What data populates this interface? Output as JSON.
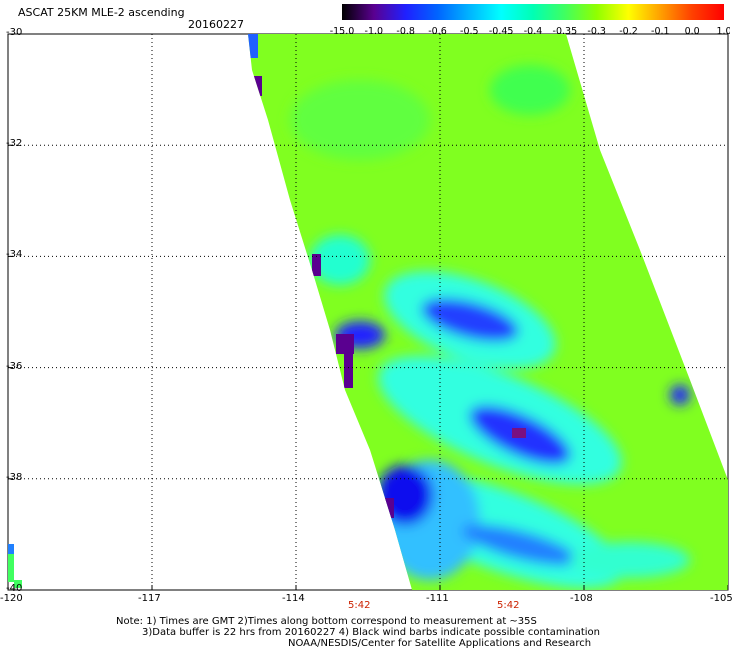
{
  "header": {
    "title": "ASCAT 25KM MLE-2 ascending",
    "date": "20160227"
  },
  "colorbar": {
    "labels": [
      "-15.0",
      "-1.0",
      "-0.8",
      "-0.6",
      "-0.5",
      "-0.45",
      "-0.4",
      "-0.35",
      "-0.3",
      "-0.2",
      "-0.1",
      "0.0",
      "1.0"
    ],
    "colors": [
      "#000000",
      "#5a0090",
      "#2020ff",
      "#0064ff",
      "#00b4ff",
      "#00ffff",
      "#00ffb4",
      "#40ff60",
      "#90ff00",
      "#ffff00",
      "#ffa000",
      "#ff4000",
      "#ff0000"
    ]
  },
  "axes": {
    "lat_labels": [
      "-30",
      "-32",
      "-34",
      "-36",
      "-38",
      "-40"
    ],
    "lon_labels": [
      "-120",
      "-117",
      "-114",
      "-111",
      "-108",
      "-105"
    ],
    "lat_values": [
      -30,
      -32,
      -34,
      -36,
      -38,
      -40
    ],
    "lon_values": [
      -120,
      -117,
      -114,
      -111,
      -108,
      -105
    ]
  },
  "times": [
    "5:42",
    "5:42"
  ],
  "notes": {
    "line1": "Note: 1) Times are GMT 2)Times along bottom correspond to measurement at ~35S",
    "line2": "3)Data buffer is 22 hrs from 20160227 4) Black wind barbs indicate possible contamination",
    "line3": "NOAA/NESDIS/Center for Satellite Applications and Research"
  },
  "swath": {
    "background_value_color": "#80ff20",
    "features": [
      {
        "name": "low-cell-1",
        "color": "#2030ff"
      },
      {
        "name": "low-cell-2",
        "color": "#2030ff"
      },
      {
        "name": "low-cell-3",
        "color": "#1010ee"
      },
      {
        "name": "edge-low",
        "color": "#5a0090"
      }
    ]
  }
}
